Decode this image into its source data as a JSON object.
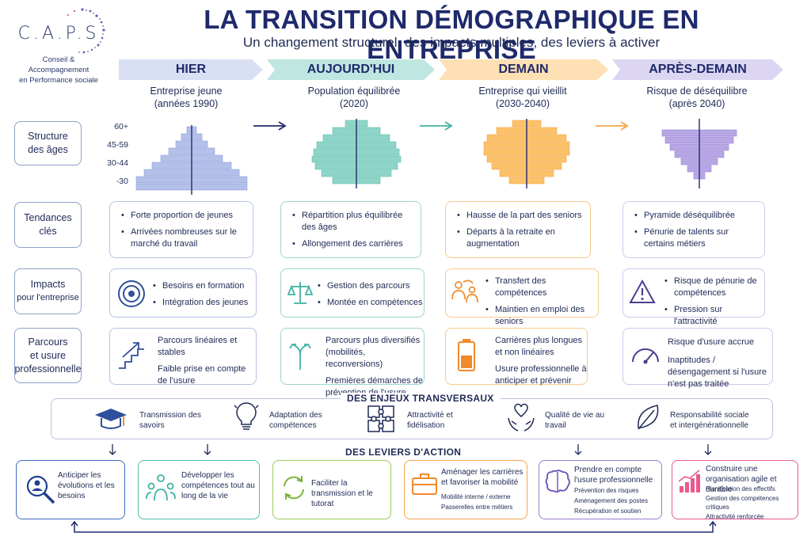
{
  "logo": {
    "word": "C.A.P.S",
    "tagline": [
      "Conseil &",
      "Accompagnement",
      "en Performance sociale"
    ]
  },
  "title": "LA TRANSITION DÉMOGRAPHIQUE EN ENTREPRISE",
  "subtitle": "Un changement structurel, des impacts multiples, des leviers à activer",
  "phases": [
    {
      "label": "HIER",
      "sub1": "Entreprise jeune",
      "sub2": "(années 1990)",
      "color": "#d9e0f4"
    },
    {
      "label": "AUJOURD'HUI",
      "sub1": "Population équilibrée",
      "sub2": "(2020)",
      "color": "#bfe6e0"
    },
    {
      "label": "DEMAIN",
      "sub1": "Entreprise qui vieillit",
      "sub2": "(2030-2040)",
      "color": "#fde0b3"
    },
    {
      "label": "APRÈS-DEMAIN",
      "sub1": "Risque de déséquilibre",
      "sub2": "(après 2040)",
      "color": "#ddd6f2"
    }
  ],
  "row_labels": {
    "structure": [
      "Structure",
      "des âges"
    ],
    "tendances": [
      "Tendances",
      "clés"
    ],
    "impacts": [
      "Impacts",
      "pour l'entreprise"
    ],
    "parcours": [
      "Parcours",
      "et usure",
      "professionnelle"
    ]
  },
  "age_axis": [
    "60+",
    "45-59",
    "30-44",
    "-30"
  ],
  "tendances": [
    [
      "Forte proportion de jeunes",
      "Arrivées nombreuses sur le marché du travail"
    ],
    [
      "Répartition plus équilibrée des âges",
      "Allongement des carrières"
    ],
    [
      "Hausse de la part des seniors",
      "Départs à la retraite en augmentation"
    ],
    [
      "Pyramide déséquilibrée",
      "Pénurie de talents sur certains métiers"
    ]
  ],
  "impacts": [
    [
      "Besoins en formation",
      "Intégration des jeunes"
    ],
    [
      "Gestion des parcours",
      "Montée en compétences"
    ],
    [
      "Transfert des compétences",
      "Maintien en emploi des seniors"
    ],
    [
      "Risque de pénurie de compétences",
      "Pression sur l'attractivité"
    ]
  ],
  "parcours": [
    [
      "Parcours linéaires et stables",
      "Faible prise en compte de l'usure"
    ],
    [
      "Parcours plus diversifiés (mobilités, reconversions)",
      "Premières démarches de prévention de l'usure"
    ],
    [
      "Carrières plus longues et non linéaires",
      "Usure professionnelle à anticiper et prévenir"
    ],
    [
      "Risque d'usure accrue",
      "Inaptitudes / désengagement si l'usure n'est pas traitée"
    ]
  ],
  "enjeux_title": "DES ENJEUX TRANSVERSAUX",
  "enjeux": [
    {
      "label": "Transmission des savoirs",
      "icon": "graduation-cap-icon"
    },
    {
      "label": "Adaptation des compétences",
      "icon": "lightbulb-icon"
    },
    {
      "label": "Attractivité et fidélisation",
      "icon": "puzzle-icon"
    },
    {
      "label": "Qualité de vie au travail",
      "icon": "heart-hands-icon"
    },
    {
      "label": "Responsabilité sociale et intergénérationnelle",
      "icon": "leaf-icon"
    }
  ],
  "leviers_title": "DES LEVIERS D'ACTION",
  "leviers": [
    {
      "label": "Anticiper les évolutions et les besoins",
      "icon": "magnifier-person-icon",
      "items": []
    },
    {
      "label": "Développer les compétences tout au long de la vie",
      "icon": "people-group-icon",
      "items": []
    },
    {
      "label": "Faciliter la transmission et le tutorat",
      "icon": "cycle-arrows-icon",
      "items": []
    },
    {
      "label": "Aménager les carrières et favoriser la mobilité",
      "icon": "briefcase-icon",
      "items": [
        "Mobilité interne / externe",
        "Passerelles entre métiers"
      ]
    },
    {
      "label": "Prendre en compte l'usure professionnelle",
      "icon": "brain-icon",
      "items": [
        "Prévention des risques",
        "Aménagement des postes",
        "Récupération et soutien"
      ]
    },
    {
      "label": "Construire une organisation agile et durable",
      "icon": "growth-chart-icon",
      "items": [
        "Planification des effectifs",
        "Gestion des compétences critiques",
        "Attractivité renforcée"
      ]
    }
  ]
}
